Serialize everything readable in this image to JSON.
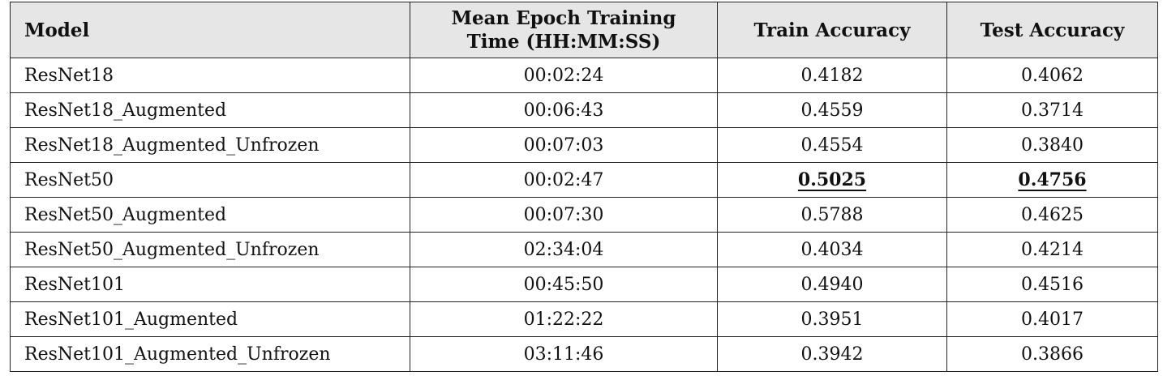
{
  "table": {
    "headers": {
      "model": "Model",
      "time_line1": "Mean Epoch Training",
      "time_line2": "Time (HH:MM:SS)",
      "train": "Train Accuracy",
      "test": "Test Accuracy"
    },
    "rows": [
      {
        "model": "ResNet18",
        "time": "00:02:24",
        "train": "0.4182",
        "test": "0.4062"
      },
      {
        "model": "ResNet18_Augmented",
        "time": "00:06:43",
        "train": "0.4559",
        "test": "0.3714"
      },
      {
        "model": "ResNet18_Augmented_Unfrozen",
        "time": "00:07:03",
        "train": "0.4554",
        "test": "0.3840"
      },
      {
        "model": "ResNet50",
        "time": "00:02:47",
        "train": "0.5025",
        "test": "0.4756"
      },
      {
        "model": "ResNet50_Augmented",
        "time": "00:07:30",
        "train": "0.5788",
        "test": "0.4625"
      },
      {
        "model": "ResNet50_Augmented_Unfrozen",
        "time": "02:34:04",
        "train": "0.4034",
        "test": "0.4214"
      },
      {
        "model": "ResNet101",
        "time": "00:45:50",
        "train": "0.4940",
        "test": "0.4516"
      },
      {
        "model": "ResNet101_Augmented",
        "time": "01:22:22",
        "train": "0.3951",
        "test": "0.4017"
      },
      {
        "model": "ResNet101_Augmented_Unfrozen",
        "time": "03:11:46",
        "train": "0.3942",
        "test": "0.3866"
      }
    ]
  }
}
